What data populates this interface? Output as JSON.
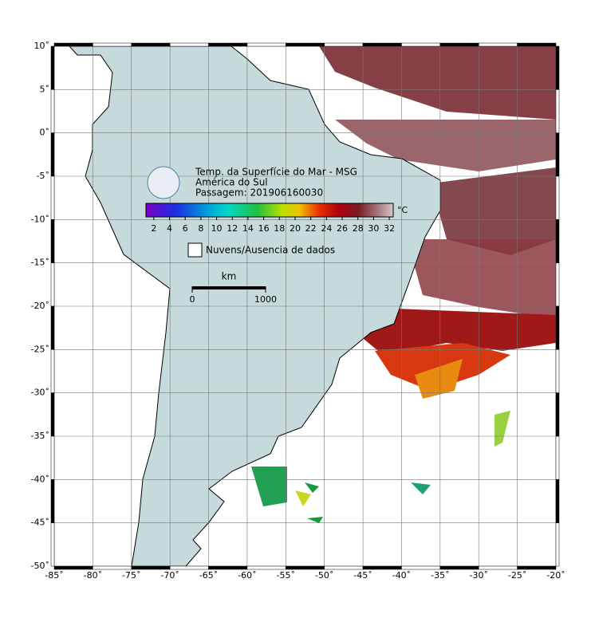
{
  "map": {
    "title": "Temp. da Superfície do Mar - MSG",
    "subtitle": "América do Sul",
    "pass": "Passagem: 201906160030",
    "lonlim": [
      -85,
      -20
    ],
    "latlim": [
      -50,
      10
    ],
    "lon_ticks": [
      {
        "value": -85,
        "label": "-85˚"
      },
      {
        "value": -80,
        "label": "-80˚"
      },
      {
        "value": -75,
        "label": "-75˚"
      },
      {
        "value": -70,
        "label": "-70˚"
      },
      {
        "value": -65,
        "label": "-65˚"
      },
      {
        "value": -60,
        "label": "-60˚"
      },
      {
        "value": -55,
        "label": "-55˚"
      },
      {
        "value": -50,
        "label": "-50˚"
      },
      {
        "value": -45,
        "label": "-45˚"
      },
      {
        "value": -40,
        "label": "-40˚"
      },
      {
        "value": -35,
        "label": "-35˚"
      },
      {
        "value": -30,
        "label": "-30˚"
      },
      {
        "value": -25,
        "label": "-25˚"
      },
      {
        "value": -20,
        "label": "-20˚"
      }
    ],
    "lat_ticks": [
      {
        "value": 10,
        "label": "10˚"
      },
      {
        "value": 5,
        "label": "5˚"
      },
      {
        "value": 0,
        "label": "0˚"
      },
      {
        "value": -5,
        "label": "-5˚"
      },
      {
        "value": -10,
        "label": "-10˚"
      },
      {
        "value": -15,
        "label": "-15˚"
      },
      {
        "value": -20,
        "label": "-20˚"
      },
      {
        "value": -25,
        "label": "-25˚"
      },
      {
        "value": -30,
        "label": "-30˚"
      },
      {
        "value": -35,
        "label": "-35˚"
      },
      {
        "value": -40,
        "label": "-40˚"
      },
      {
        "value": -45,
        "label": "-45˚"
      },
      {
        "value": -50,
        "label": "-50˚"
      }
    ],
    "colorbar": {
      "unit": "°C",
      "range": [
        1,
        32.5
      ],
      "ticks": [
        2,
        4,
        6,
        8,
        10,
        12,
        14,
        16,
        18,
        20,
        22,
        24,
        26,
        28,
        30,
        32
      ]
    },
    "legend": "Nuvens/Ausencia de dados",
    "scale": {
      "unit": "km",
      "ticks": [
        0,
        1000
      ]
    }
  }
}
